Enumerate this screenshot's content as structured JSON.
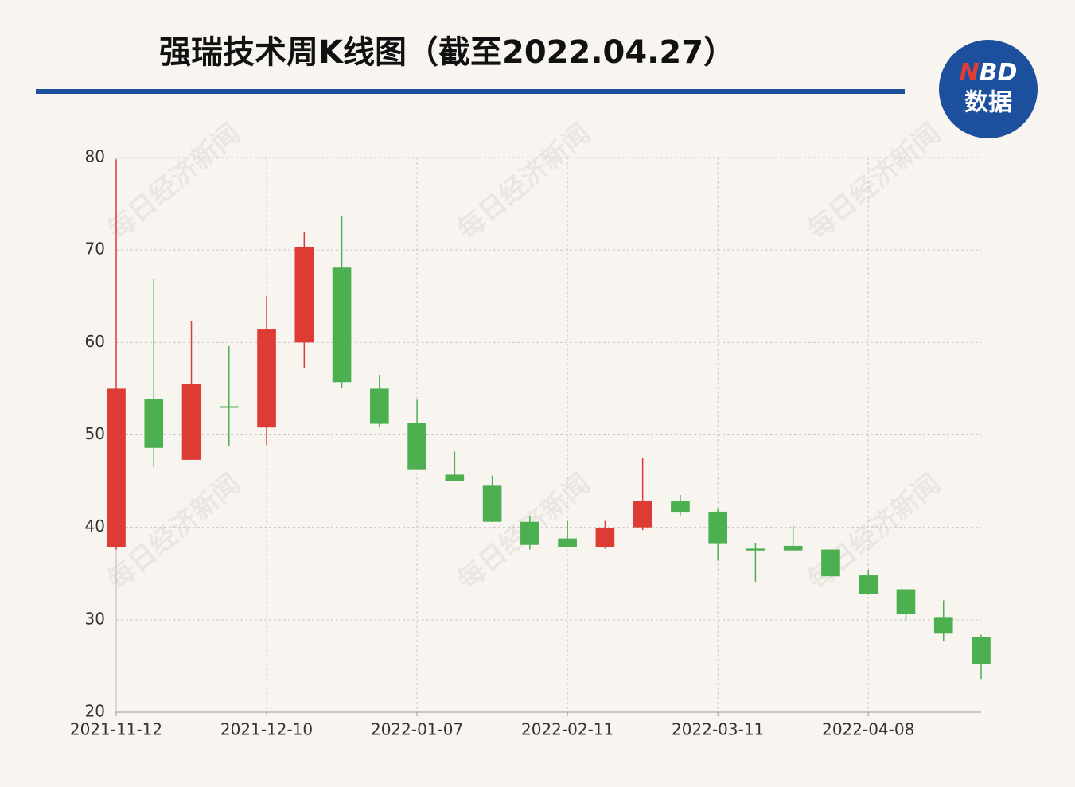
{
  "chart_data": {
    "type": "candlestick",
    "title": "强瑞技术周K线图（截至2022.04.27）",
    "logo_n": "N",
    "logo_bd": "BD",
    "logo_bottom": "数据",
    "watermark": "每日经济新闻",
    "categories": [
      "2021-11-12",
      null,
      null,
      null,
      "2021-12-10",
      null,
      null,
      null,
      "2022-01-07",
      null,
      null,
      null,
      "2022-02-11",
      null,
      null,
      null,
      "2022-03-11",
      null,
      null,
      null,
      "2022-04-08",
      null,
      null,
      null
    ],
    "series": [
      {
        "open": [
          37.9,
          53.9,
          47.3,
          53.1,
          50.8,
          60.0,
          68.1,
          55.0,
          51.3,
          45.7,
          44.5,
          40.6,
          38.8,
          37.9,
          40.0,
          42.9,
          41.7,
          37.7,
          38.0,
          37.6,
          34.8,
          33.3,
          30.3,
          28.1
        ],
        "high": [
          79.8,
          66.9,
          62.3,
          59.6,
          65.0,
          72.0,
          73.7,
          56.5,
          53.8,
          48.2,
          45.6,
          41.2,
          40.7,
          40.7,
          47.5,
          43.5,
          42.0,
          38.3,
          40.2,
          37.6,
          35.4,
          33.3,
          32.1,
          28.4
        ],
        "low": [
          37.6,
          46.5,
          47.3,
          48.8,
          48.9,
          57.2,
          55.1,
          50.9,
          46.2,
          45.0,
          40.6,
          37.6,
          37.9,
          37.7,
          39.7,
          41.3,
          36.4,
          34.1,
          37.5,
          34.7,
          32.7,
          29.9,
          27.7,
          23.6
        ],
        "close": [
          55.0,
          48.6,
          55.5,
          53.0,
          61.4,
          70.3,
          55.7,
          51.2,
          46.2,
          45.0,
          40.6,
          38.1,
          37.9,
          39.9,
          42.9,
          41.6,
          38.2,
          37.5,
          37.5,
          34.7,
          32.8,
          30.6,
          28.5,
          25.2
        ]
      }
    ],
    "up_color": "#dc3c34",
    "down_color": "#4caf50",
    "ylim": [
      20,
      80
    ],
    "yticks": [
      20,
      30,
      40,
      50,
      60,
      70,
      80
    ],
    "grid": true
  }
}
